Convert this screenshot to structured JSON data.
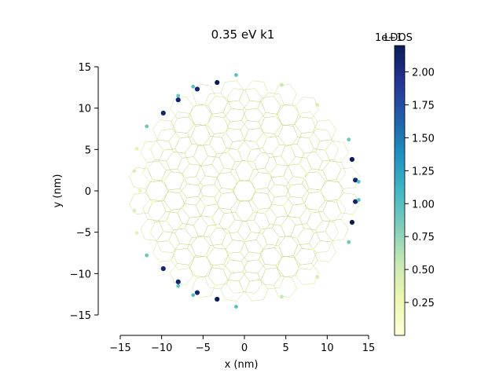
{
  "chart_data": {
    "type": "scatter",
    "title": "0.35 eV k1",
    "xlabel": "x (nm)",
    "ylabel": "y (nm)",
    "xlim": [
      -15,
      15
    ],
    "ylim": [
      -15,
      15
    ],
    "xticks": [
      -15,
      -10,
      -5,
      0,
      5,
      10,
      15
    ],
    "yticks": [
      -15,
      -10,
      -5,
      0,
      5,
      10,
      15
    ],
    "grid": false,
    "lattice": "twisted bilayer graphene flake, circular, radius approx 14 nm",
    "colorbar": {
      "label": "LDOS",
      "offset_text": "1e−1",
      "colormap": "YlGnBu",
      "vmin": 0.0,
      "vmax": 2.2,
      "ticks": [
        0.25,
        0.5,
        0.75,
        1.0,
        1.25,
        1.5,
        1.75,
        2.0
      ],
      "tick_labels": [
        "0.25",
        "0.50",
        "0.75",
        "1.00",
        "1.25",
        "1.50",
        "1.75",
        "2.00"
      ],
      "colors": [
        "#ffffd9",
        "#edf8b1",
        "#c7e9b4",
        "#7fcdbb",
        "#41b6c4",
        "#1d91c0",
        "#225ea8",
        "#253494",
        "#081d58"
      ]
    },
    "highlighted_points": [
      {
        "x": -3.3,
        "y": 13.1,
        "ldos": 2.2
      },
      {
        "x": -5.7,
        "y": 12.3,
        "ldos": 2.1
      },
      {
        "x": -8.0,
        "y": 11.0,
        "ldos": 2.1
      },
      {
        "x": -9.8,
        "y": 9.4,
        "ldos": 2.1
      },
      {
        "x": 13.0,
        "y": 3.8,
        "ldos": 2.2
      },
      {
        "x": 13.4,
        "y": 1.3,
        "ldos": 2.1
      },
      {
        "x": 13.4,
        "y": -1.3,
        "ldos": 2.1
      },
      {
        "x": 13.0,
        "y": -3.8,
        "ldos": 2.2
      },
      {
        "x": -3.3,
        "y": -13.1,
        "ldos": 2.2
      },
      {
        "x": -5.7,
        "y": -12.3,
        "ldos": 2.1
      },
      {
        "x": -8.0,
        "y": -11.0,
        "ldos": 2.1
      },
      {
        "x": -9.8,
        "y": -9.4,
        "ldos": 2.1
      },
      {
        "x": -6.2,
        "y": 12.6,
        "ldos": 1.0
      },
      {
        "x": -8.0,
        "y": 11.5,
        "ldos": 0.95
      },
      {
        "x": -11.8,
        "y": 7.8,
        "ldos": 0.9
      },
      {
        "x": -1.0,
        "y": 14.0,
        "ldos": 1.0
      },
      {
        "x": 12.6,
        "y": 6.2,
        "ldos": 0.9
      },
      {
        "x": 13.8,
        "y": 1.1,
        "ldos": 1.0
      },
      {
        "x": 13.8,
        "y": -1.1,
        "ldos": 1.0
      },
      {
        "x": 12.6,
        "y": -6.2,
        "ldos": 0.9
      },
      {
        "x": -6.2,
        "y": -12.6,
        "ldos": 1.0
      },
      {
        "x": -8.0,
        "y": -11.5,
        "ldos": 0.95
      },
      {
        "x": -11.8,
        "y": -7.8,
        "ldos": 0.9
      },
      {
        "x": -1.0,
        "y": -14.0,
        "ldos": 1.0
      },
      {
        "x": 4.5,
        "y": 12.8,
        "ldos": 0.55
      },
      {
        "x": 4.5,
        "y": -12.8,
        "ldos": 0.55
      },
      {
        "x": 8.8,
        "y": 10.4,
        "ldos": 0.45
      },
      {
        "x": 8.8,
        "y": -10.4,
        "ldos": 0.45
      },
      {
        "x": -13.3,
        "y": 2.4,
        "ldos": 0.45
      },
      {
        "x": -13.3,
        "y": -2.4,
        "ldos": 0.45
      },
      {
        "x": -13.0,
        "y": 5.1,
        "ldos": 0.35
      },
      {
        "x": -13.0,
        "y": -5.1,
        "ldos": 0.35
      },
      {
        "x": -12.6,
        "y": 0.0,
        "ldos": 0.3
      }
    ]
  }
}
